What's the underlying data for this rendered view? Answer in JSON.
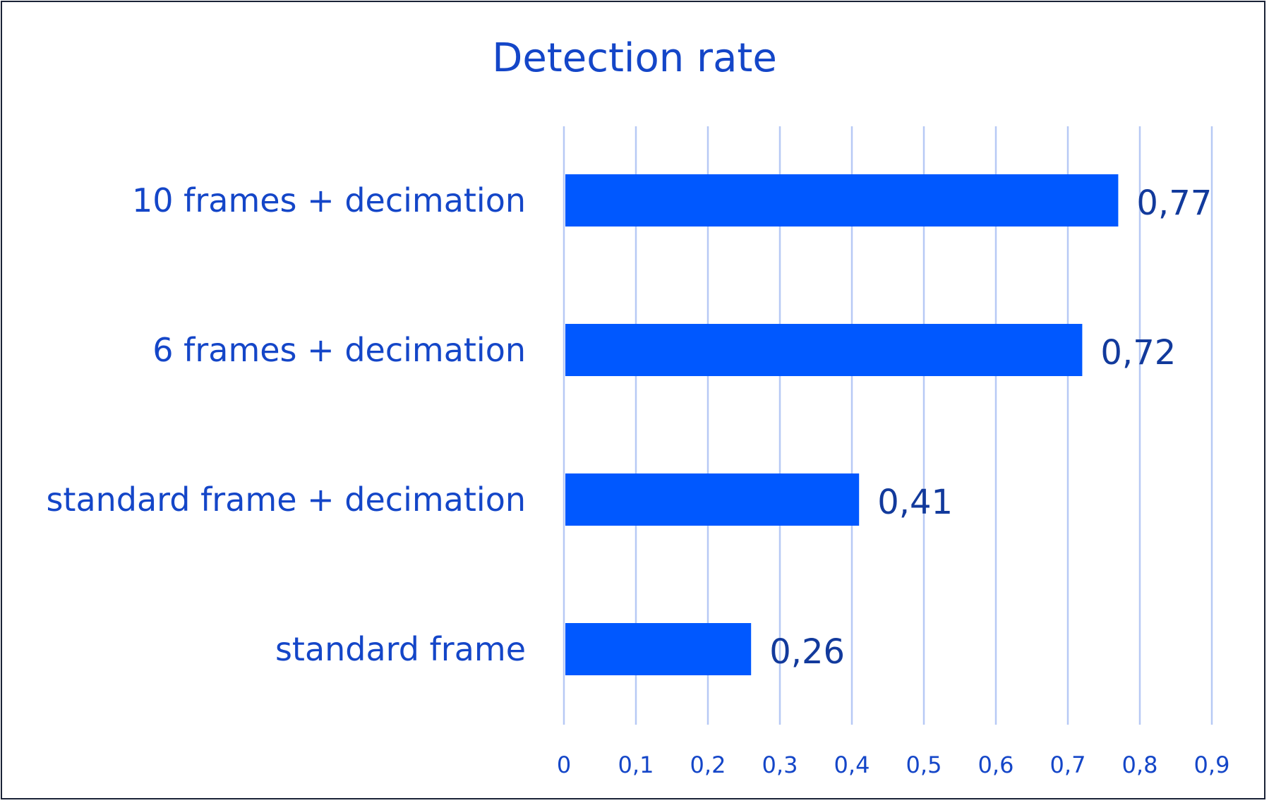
{
  "chart_data": {
    "type": "bar",
    "orientation": "horizontal",
    "title": "Detection rate",
    "categories": [
      "10 frames + decimation",
      "6 frames + decimation",
      "standard frame + decimation",
      "standard frame"
    ],
    "values": [
      0.77,
      0.72,
      0.41,
      0.26
    ],
    "value_labels": [
      "0,77",
      "0,72",
      "0,41",
      "0,26"
    ],
    "xlim": [
      0,
      0.9
    ],
    "x_ticks": [
      0,
      0.1,
      0.2,
      0.3,
      0.4,
      0.5,
      0.6,
      0.7,
      0.8,
      0.9
    ],
    "x_tick_labels": [
      "0",
      "0,1",
      "0,2",
      "0,3",
      "0,4",
      "0,5",
      "0,6",
      "0,7",
      "0,8",
      "0,9"
    ],
    "grid": "vertical",
    "legend": "none",
    "colors": {
      "bar": "#0058ff",
      "grid": "#b7c9f5",
      "text": "#1446c8",
      "value_text": "#123a9c",
      "border": "#1a2236"
    }
  }
}
